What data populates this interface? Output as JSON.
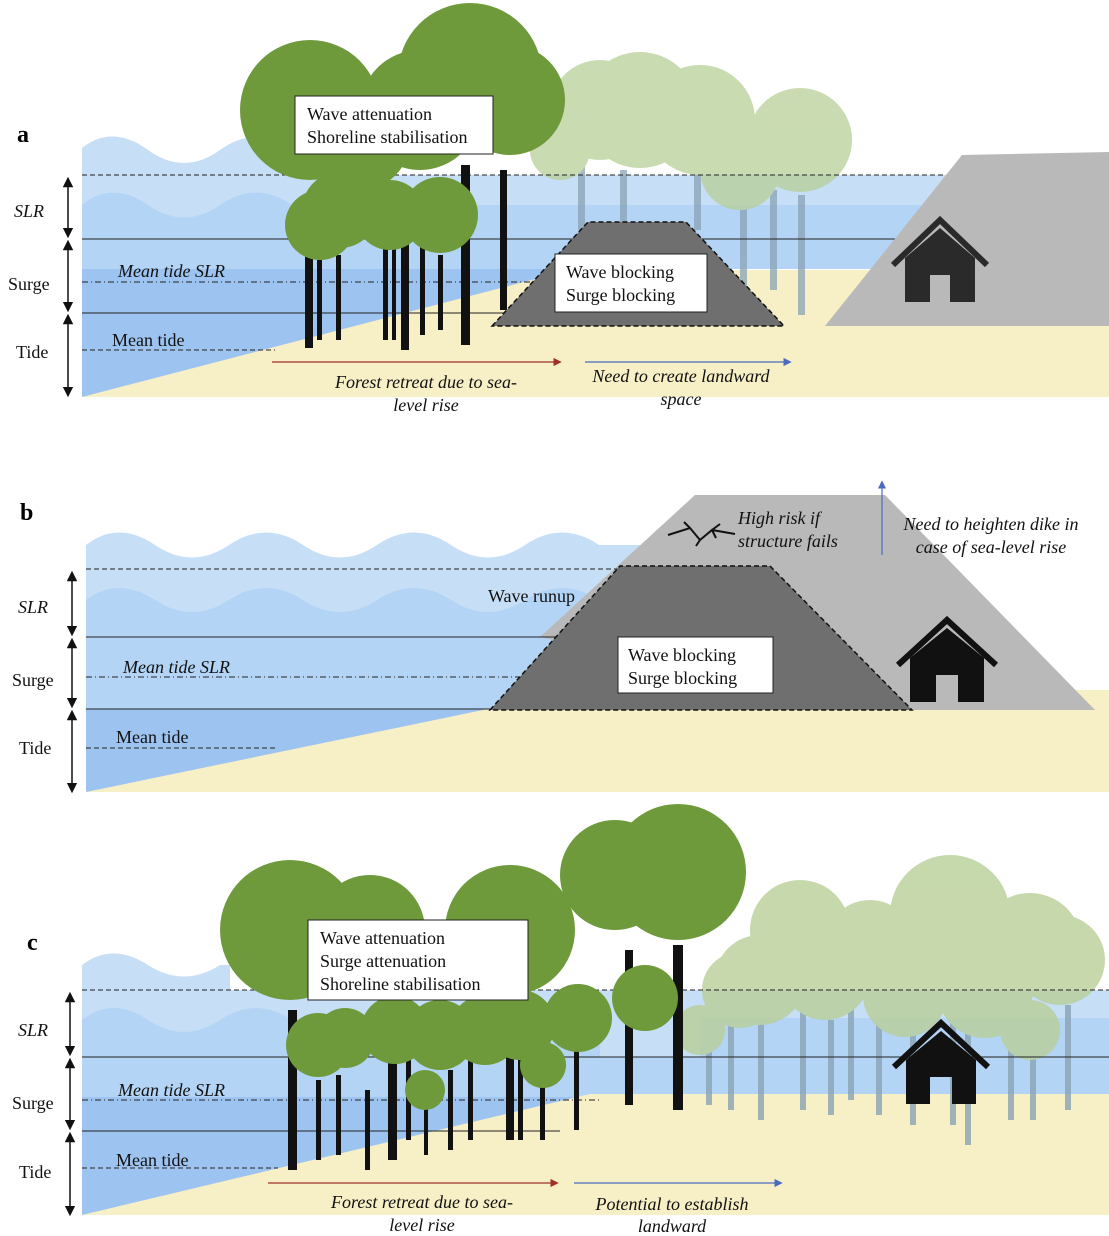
{
  "panels": [
    {
      "letter": "a",
      "left_labels": {
        "slr": "SLR",
        "surge": "Surge",
        "tide": "Tide"
      },
      "line_labels": {
        "mean_tide_slr": "Mean tide SLR",
        "mean_tide": "Mean tide"
      },
      "box_mangrove": [
        "Wave attenuation",
        "Shoreline stabilisation"
      ],
      "box_dike": [
        "Wave blocking",
        "Surge blocking"
      ],
      "arrow_retreat": [
        "Forest retreat due to sea-",
        "level rise"
      ],
      "arrow_landward": [
        "Need to create landward",
        "space"
      ]
    },
    {
      "letter": "b",
      "left_labels": {
        "slr": "SLR",
        "surge": "Surge",
        "tide": "Tide"
      },
      "line_labels": {
        "mean_tide_slr": "Mean tide SLR",
        "mean_tide": "Mean tide"
      },
      "wave_runup": "Wave runup",
      "box_dike": [
        "Wave blocking",
        "Surge blocking"
      ],
      "high_risk": [
        "High risk if",
        "structure fails"
      ],
      "heighten": [
        "Need to heighten dike in",
        "case of sea-level rise"
      ]
    },
    {
      "letter": "c",
      "left_labels": {
        "slr": "SLR",
        "surge": "Surge",
        "tide": "Tide"
      },
      "line_labels": {
        "mean_tide_slr": "Mean tide SLR",
        "mean_tide": "Mean tide"
      },
      "box_mangrove": [
        "Wave attenuation",
        "Surge attenuation",
        "Shoreline stabilisation"
      ],
      "arrow_retreat": [
        "Forest retreat due to sea-",
        "level rise"
      ],
      "arrow_landward": [
        "Potential to establish",
        "landward"
      ]
    }
  ],
  "colors": {
    "sea_light": "#c6def6",
    "sea_mid": "#b3d4f5",
    "sea_deep": "#9dc4f0",
    "sand": "#f7efc6",
    "dike_dark": "#6f6f6f",
    "dike_light": "#b9b9b9",
    "tree_green": "#6e9a3c",
    "tree_faded": "#b8cf98",
    "house": "#262626",
    "arrow_red": "#a0302a",
    "arrow_blue": "#4a6bc0"
  }
}
